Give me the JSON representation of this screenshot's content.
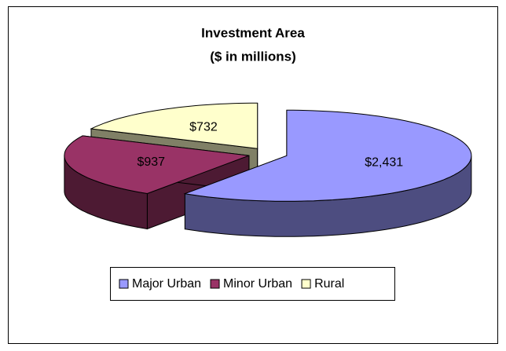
{
  "chart_data": {
    "type": "pie3d",
    "title": "Investment Area",
    "subtitle": "($ in millions)",
    "categories": [
      "Major Urban",
      "Minor Urban",
      "Rural"
    ],
    "values": [
      2431,
      937,
      732
    ],
    "value_labels": [
      "$2,431",
      "$937",
      "$732"
    ],
    "colors": [
      "#9999ff",
      "#993366",
      "#ffffcc"
    ],
    "legend": "bottom"
  }
}
